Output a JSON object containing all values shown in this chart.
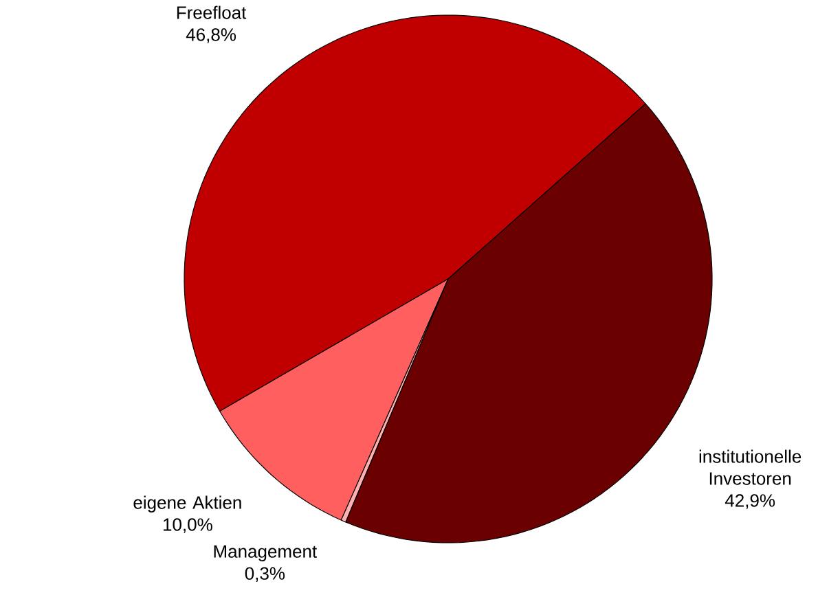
{
  "chart_data": {
    "type": "pie",
    "categories": [
      "Freefloat",
      "eigene Aktien",
      "Management",
      "institutionelle Investoren"
    ],
    "values": [
      46.8,
      10.0,
      0.3,
      42.9
    ],
    "colors": [
      "#c00000",
      "#ff5f5f",
      "#ffb0b0",
      "#6b0000"
    ],
    "value_labels": [
      "46,8%",
      "10,0%",
      "0,3%",
      "42,9%"
    ]
  }
}
